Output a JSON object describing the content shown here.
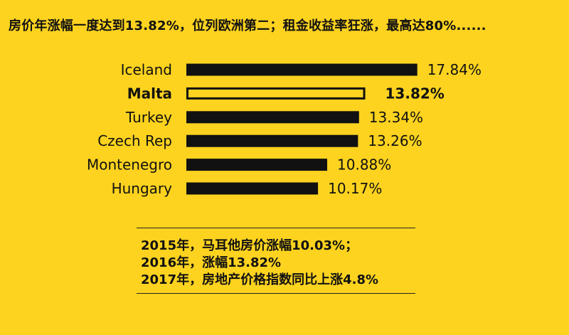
{
  "title": "房价年涨幅一度达到13.82%，位列欧洲第二；租金收益率狂涨，最高达80%......",
  "chart_data": {
    "type": "bar",
    "orientation": "horizontal",
    "categories": [
      "Iceland",
      "Malta",
      "Turkey",
      "Czech Rep",
      "Montenegro",
      "Hungary"
    ],
    "values": [
      17.84,
      13.82,
      13.34,
      13.26,
      10.88,
      10.17
    ],
    "value_labels": [
      "17.84%",
      "13.82%",
      "13.34%",
      "13.26%",
      "10.88%",
      "10.17%"
    ],
    "highlight": "Malta",
    "xlabel": "",
    "ylabel": "",
    "bar_color": "#111111",
    "highlight_fill": "#FDD31F"
  },
  "notes": [
    "2015年，马耳他房价涨幅10.03%；",
    "2016年，涨幅13.82%",
    "2017年，房地产价格指数同比上涨4.8%"
  ]
}
